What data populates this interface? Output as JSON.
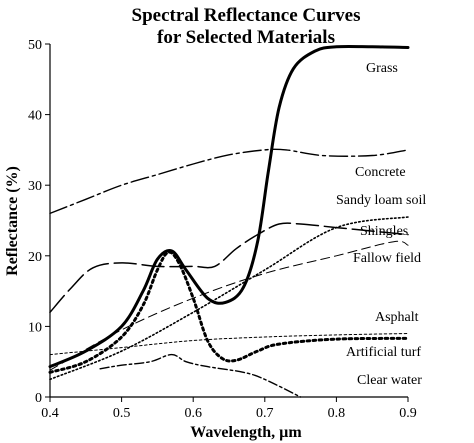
{
  "chart_data": {
    "type": "line",
    "title_line1": "Spectral Reflectance Curves",
    "title_line2": "for Selected Materials",
    "xlabel": "Wavelength, µm",
    "ylabel": "Reflectance (%)",
    "xlim": [
      0.4,
      0.9
    ],
    "ylim": [
      0,
      50
    ],
    "x_ticks": [
      "0.4",
      "0.5",
      "0.6",
      "0.7",
      "0.8",
      "0.9"
    ],
    "y_ticks": [
      "0",
      "10",
      "20",
      "30",
      "40",
      "50"
    ],
    "grid": false,
    "series": [
      {
        "name": "Grass",
        "style": "solid-thick",
        "points": [
          [
            0.4,
            4.3
          ],
          [
            0.45,
            6.5
          ],
          [
            0.5,
            10
          ],
          [
            0.53,
            15
          ],
          [
            0.55,
            19.5
          ],
          [
            0.57,
            20.7
          ],
          [
            0.59,
            18
          ],
          [
            0.62,
            14
          ],
          [
            0.645,
            13.4
          ],
          [
            0.67,
            15.5
          ],
          [
            0.69,
            22
          ],
          [
            0.705,
            32
          ],
          [
            0.72,
            41
          ],
          [
            0.74,
            46.5
          ],
          [
            0.77,
            49
          ],
          [
            0.8,
            49.6
          ],
          [
            0.85,
            49.6
          ],
          [
            0.9,
            49.5
          ]
        ]
      },
      {
        "name": "Concrete",
        "style": "dash-dot-long",
        "points": [
          [
            0.4,
            26
          ],
          [
            0.45,
            28
          ],
          [
            0.5,
            30
          ],
          [
            0.55,
            31.5
          ],
          [
            0.6,
            33
          ],
          [
            0.65,
            34.3
          ],
          [
            0.7,
            35
          ],
          [
            0.73,
            35
          ],
          [
            0.78,
            34.2
          ],
          [
            0.85,
            34.2
          ],
          [
            0.9,
            35
          ]
        ]
      },
      {
        "name": "Sandy loam soil",
        "style": "dotted",
        "points": [
          [
            0.4,
            2.5
          ],
          [
            0.5,
            6.5
          ],
          [
            0.6,
            12
          ],
          [
            0.7,
            18
          ],
          [
            0.8,
            24
          ],
          [
            0.9,
            25.5
          ]
        ]
      },
      {
        "name": "Shingles",
        "style": "long-dash",
        "points": [
          [
            0.4,
            12
          ],
          [
            0.43,
            15.5
          ],
          [
            0.46,
            18.3
          ],
          [
            0.5,
            19
          ],
          [
            0.55,
            18.5
          ],
          [
            0.6,
            18.5
          ],
          [
            0.63,
            18.5
          ],
          [
            0.66,
            21
          ],
          [
            0.69,
            23
          ],
          [
            0.72,
            24.5
          ],
          [
            0.75,
            24.5
          ],
          [
            0.8,
            24
          ],
          [
            0.85,
            23.5
          ],
          [
            0.9,
            23
          ]
        ]
      },
      {
        "name": "Fallow field",
        "style": "dashed-thin",
        "points": [
          [
            0.4,
            3.8
          ],
          [
            0.5,
            9.5
          ],
          [
            0.6,
            14
          ],
          [
            0.7,
            17.5
          ],
          [
            0.8,
            20
          ],
          [
            0.88,
            22
          ],
          [
            0.9,
            21.5
          ]
        ]
      },
      {
        "name": "Asphalt",
        "style": "fine-dashed",
        "points": [
          [
            0.4,
            6
          ],
          [
            0.5,
            7
          ],
          [
            0.6,
            8
          ],
          [
            0.7,
            8.5
          ],
          [
            0.8,
            8.8
          ],
          [
            0.9,
            9
          ]
        ]
      },
      {
        "name": "Artificial turf",
        "style": "heavy-dotted",
        "points": [
          [
            0.4,
            3.5
          ],
          [
            0.45,
            5
          ],
          [
            0.5,
            8.5
          ],
          [
            0.53,
            13
          ],
          [
            0.55,
            18
          ],
          [
            0.565,
            20.5
          ],
          [
            0.58,
            19
          ],
          [
            0.6,
            14
          ],
          [
            0.62,
            8
          ],
          [
            0.64,
            5.5
          ],
          [
            0.66,
            5.2
          ],
          [
            0.69,
            6.5
          ],
          [
            0.72,
            7.5
          ],
          [
            0.8,
            8.2
          ],
          [
            0.9,
            8.3
          ]
        ]
      },
      {
        "name": "Clear water",
        "style": "dash-dot",
        "points": [
          [
            0.47,
            4
          ],
          [
            0.5,
            4.5
          ],
          [
            0.54,
            5
          ],
          [
            0.57,
            6
          ],
          [
            0.59,
            5
          ],
          [
            0.62,
            4.3
          ],
          [
            0.67,
            3.5
          ],
          [
            0.7,
            2.5
          ],
          [
            0.75,
            0
          ]
        ]
      }
    ]
  }
}
